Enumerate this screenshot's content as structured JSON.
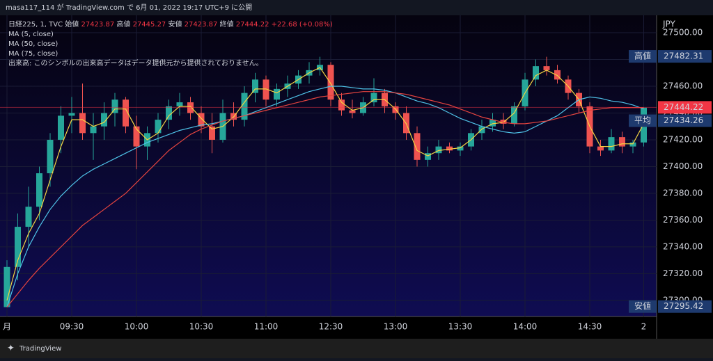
{
  "header": {
    "publisher": "masa117_114 が TradingView.com で 6月 01, 2022 19:17 UTC+9 に公開"
  },
  "footer": {
    "brand": "TradingView"
  },
  "chart_data": {
    "type": "candlestick",
    "currency": "JPY",
    "legend": {
      "symbol": "日経225, 1, TVC",
      "open_label": "始値",
      "open": 27423.87,
      "high_label": "高値",
      "high": 27445.27,
      "low_label": "安値",
      "low": 27423.87,
      "close_label": "終値",
      "close": 27444.22,
      "change": "+22.68 (+0.08%)",
      "volume_note": "出来高: このシンボルの出来高データはデータ提供元から提供されておりません。"
    },
    "categories": [
      "月",
      null,
      null,
      null,
      null,
      null,
      "09:30",
      null,
      null,
      null,
      null,
      null,
      "10:00",
      null,
      null,
      null,
      null,
      null,
      "10:30",
      null,
      null,
      null,
      null,
      null,
      "11:00",
      null,
      null,
      null,
      null,
      null,
      "12:30",
      null,
      null,
      null,
      null,
      null,
      "13:00",
      null,
      null,
      null,
      null,
      null,
      "13:30",
      null,
      null,
      null,
      null,
      null,
      "14:00",
      null,
      null,
      null,
      null,
      null,
      "14:30",
      null,
      null,
      null,
      null,
      "2"
    ],
    "open": [
      27295,
      27325,
      27355,
      27370,
      27395,
      27420,
      27438,
      27440,
      27425,
      27430,
      27440,
      27450,
      27430,
      27415,
      27425,
      27435,
      27445,
      27448,
      27440,
      27430,
      27420,
      27440,
      27435,
      27455,
      27465,
      27450,
      27458,
      27462,
      27468,
      27472,
      27476,
      27450,
      27442,
      27440,
      27448,
      27455,
      27445,
      27440,
      27425,
      27405,
      27410,
      27415,
      27412,
      27415,
      27425,
      27430,
      27435,
      27432,
      27445,
      27465,
      27475,
      27472,
      27465,
      27455,
      27445,
      27415,
      27412,
      27422,
      27415,
      27418
    ],
    "high": [
      27330,
      27365,
      27385,
      27400,
      27425,
      27445,
      27452,
      27462,
      27440,
      27448,
      27455,
      27452,
      27438,
      27430,
      27440,
      27450,
      27455,
      27452,
      27445,
      27440,
      27450,
      27448,
      27460,
      27470,
      27468,
      27462,
      27468,
      27472,
      27478,
      27482,
      27478,
      27455,
      27450,
      27452,
      27466,
      27458,
      27448,
      27445,
      27430,
      27415,
      27420,
      27418,
      27418,
      27428,
      27435,
      27440,
      27440,
      27448,
      27470,
      27480,
      27482,
      27476,
      27468,
      27458,
      27448,
      27420,
      27428,
      27426,
      27420,
      27444
    ],
    "low": [
      27295,
      27315,
      27340,
      27360,
      27385,
      27410,
      27425,
      27420,
      27405,
      27420,
      27430,
      27425,
      27398,
      27405,
      27418,
      27428,
      27438,
      27435,
      27425,
      27410,
      27418,
      27430,
      27430,
      27448,
      27445,
      27445,
      27452,
      27458,
      27462,
      27468,
      27445,
      27438,
      27436,
      27438,
      27445,
      27440,
      27435,
      27420,
      27400,
      27400,
      27405,
      27410,
      27408,
      27412,
      27420,
      27426,
      27428,
      27430,
      27442,
      27460,
      27468,
      27462,
      27450,
      27440,
      27410,
      27408,
      27410,
      27410,
      27410,
      27415
    ],
    "close": [
      27325,
      27355,
      27370,
      27395,
      27420,
      27438,
      27440,
      27425,
      27430,
      27440,
      27450,
      27430,
      27415,
      27425,
      27435,
      27445,
      27448,
      27440,
      27430,
      27420,
      27440,
      27435,
      27455,
      27465,
      27450,
      27458,
      27462,
      27468,
      27472,
      27476,
      27450,
      27442,
      27440,
      27448,
      27455,
      27445,
      27440,
      27425,
      27405,
      27410,
      27415,
      27412,
      27415,
      27425,
      27430,
      27435,
      27432,
      27445,
      27465,
      27475,
      27472,
      27465,
      27455,
      27445,
      27415,
      27412,
      27422,
      27415,
      27418,
      27444
    ],
    "up_color": "#26a69a",
    "down_color": "#ef5350",
    "series": [
      {
        "name": "MA (5, close)",
        "color": "#f5d442",
        "values": [
          27300,
          27330,
          27350,
          27365,
          27390,
          27415,
          27435,
          27435,
          27430,
          27433,
          27443,
          27443,
          27428,
          27420,
          27425,
          27438,
          27445,
          27445,
          27436,
          27428,
          27430,
          27437,
          27448,
          27458,
          27458,
          27455,
          27460,
          27465,
          27470,
          27474,
          27462,
          27448,
          27442,
          27444,
          27450,
          27450,
          27443,
          27432,
          27412,
          27408,
          27412,
          27413,
          27414,
          27420,
          27428,
          27432,
          27433,
          27440,
          27455,
          27468,
          27472,
          27468,
          27460,
          27450,
          27430,
          27415,
          27415,
          27417,
          27417,
          27432
        ]
      },
      {
        "name": "MA (50, close)",
        "color": "#4fc3e8",
        "values": [
          27295,
          27320,
          27340,
          27355,
          27368,
          27378,
          27386,
          27393,
          27398,
          27402,
          27406,
          27410,
          27414,
          27418,
          27421,
          27424,
          27427,
          27429,
          27431,
          27432,
          27434,
          27436,
          27438,
          27441,
          27444,
          27447,
          27450,
          27453,
          27456,
          27458,
          27460,
          27460,
          27459,
          27458,
          27458,
          27457,
          27455,
          27452,
          27449,
          27447,
          27444,
          27440,
          27436,
          27433,
          27430,
          27428,
          27426,
          27425,
          27426,
          27430,
          27434,
          27438,
          27444,
          27450,
          27452,
          27451,
          27449,
          27448,
          27446,
          27443
        ]
      },
      {
        "name": "MA (75, close)",
        "color": "#e5443f",
        "values": [
          27295,
          27305,
          27315,
          27324,
          27332,
          27340,
          27348,
          27356,
          27362,
          27368,
          27374,
          27380,
          27388,
          27396,
          27404,
          27412,
          27418,
          27424,
          27428,
          27431,
          27434,
          27436,
          27438,
          27440,
          27442,
          27444,
          27446,
          27448,
          27450,
          27452,
          27453,
          27454,
          27455,
          27456,
          27456,
          27456,
          27455,
          27454,
          27452,
          27450,
          27448,
          27446,
          27443,
          27440,
          27437,
          27435,
          27433,
          27432,
          27432,
          27433,
          27434,
          27436,
          27438,
          27440,
          27442,
          27443,
          27444,
          27444,
          27444,
          27444
        ]
      }
    ],
    "price_labels": [
      {
        "label": "高値",
        "value": 27482.31,
        "color": "#1e3a6e"
      },
      {
        "label": "平均",
        "value": 27434.26,
        "color": "#1e3a6e"
      },
      {
        "label": null,
        "value": 27444.22,
        "color": "#f23645"
      },
      {
        "label": "安値",
        "value": 27295.42,
        "color": "#1e3a6e"
      }
    ],
    "ylim": [
      27288,
      27513
    ],
    "yticks": [
      {
        "value": 27300,
        "label": "27300.00"
      },
      {
        "value": 27320,
        "label": "27320.00"
      },
      {
        "value": 27340,
        "label": "27340.00"
      },
      {
        "value": 27360,
        "label": "27360.00"
      },
      {
        "value": 27380,
        "label": "27380.00"
      },
      {
        "value": 27400,
        "label": "27400.00"
      },
      {
        "value": 27420,
        "label": "27420.00"
      },
      {
        "value": 27440,
        "label": "27440.00"
      },
      {
        "value": 27460,
        "label": "27460.00"
      },
      {
        "value": 27480,
        "label": "27480.00"
      },
      {
        "value": 27500,
        "label": "27500.00"
      }
    ],
    "grid": true
  }
}
